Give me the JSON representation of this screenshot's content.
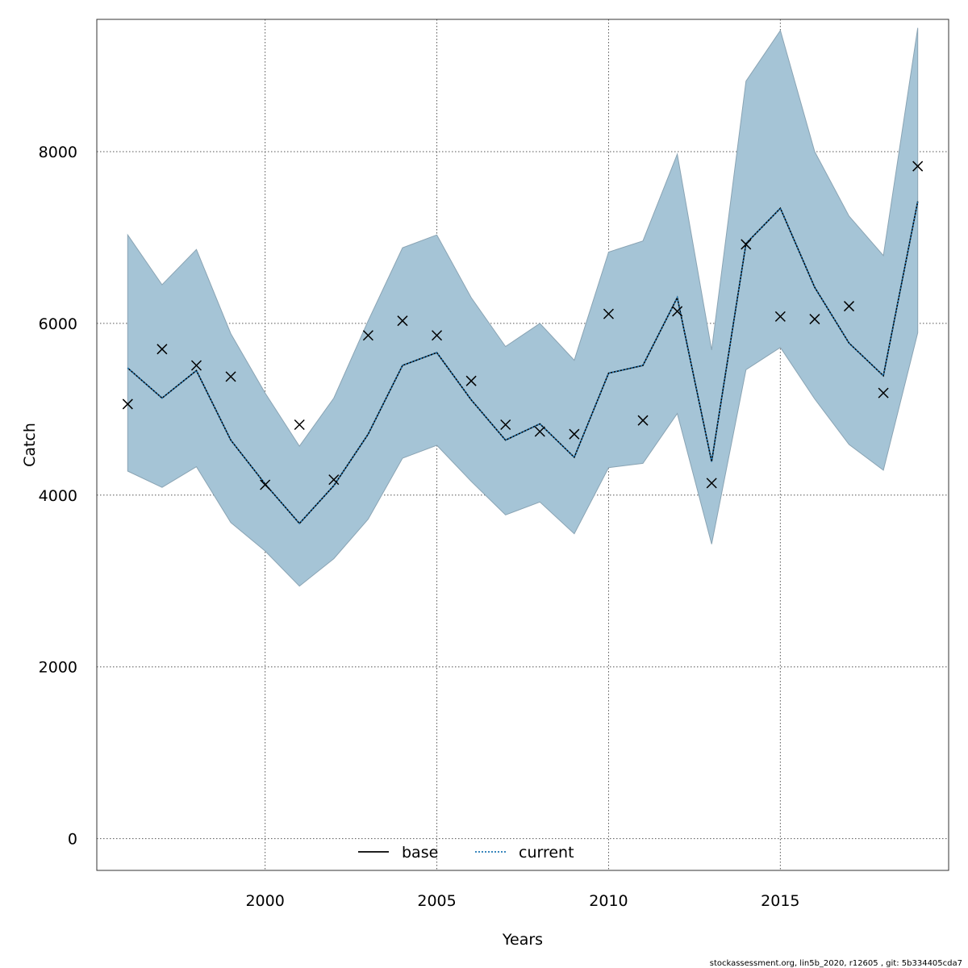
{
  "chart_data": {
    "type": "line",
    "xlabel": "Years",
    "ylabel": "Catch",
    "xlim": [
      1995.1,
      2019.9
    ],
    "ylim": [
      -370,
      9540
    ],
    "x_ticks": [
      2000,
      2005,
      2010,
      2015
    ],
    "y_ticks": [
      0,
      2000,
      4000,
      6000,
      8000
    ],
    "grid": true,
    "legend_position": "bottom-center",
    "x": [
      1996,
      1997,
      1998,
      1999,
      2000,
      2001,
      2002,
      2003,
      2004,
      2005,
      2006,
      2007,
      2008,
      2009,
      2010,
      2011,
      2012,
      2013,
      2014,
      2015,
      2016,
      2017,
      2018,
      2019
    ],
    "band": {
      "upper": [
        7030,
        6450,
        6860,
        5880,
        5190,
        4570,
        5130,
        6030,
        6880,
        7030,
        6300,
        5730,
        6000,
        5570,
        6830,
        6960,
        7970,
        5690,
        8820,
        9410,
        8000,
        7250,
        6790,
        9440
      ],
      "lower": [
        4280,
        4090,
        4330,
        3680,
        3350,
        2940,
        3260,
        3720,
        4430,
        4580,
        4160,
        3770,
        3920,
        3550,
        4320,
        4370,
        4950,
        3430,
        5460,
        5720,
        5120,
        4590,
        4290,
        5890
      ],
      "color": "#a5c4d6"
    },
    "observed": {
      "values": [
        5060,
        5700,
        5510,
        5380,
        4120,
        4820,
        4180,
        5860,
        6030,
        5860,
        5330,
        4820,
        4740,
        4710,
        6110,
        4870,
        6140,
        4140,
        6920,
        6080,
        6050,
        6200,
        5190,
        7830
      ],
      "marker": "x"
    },
    "series": [
      {
        "name": "base",
        "values": [
          5480,
          5130,
          5450,
          4640,
          4130,
          3670,
          4110,
          4710,
          5510,
          5660,
          5110,
          4640,
          4830,
          4440,
          5420,
          5510,
          6300,
          4390,
          6930,
          7340,
          6420,
          5770,
          5390,
          7420
        ],
        "color": "#000000",
        "style": "solid"
      },
      {
        "name": "current",
        "values": [
          5480,
          5130,
          5450,
          4640,
          4130,
          3670,
          4110,
          4710,
          5510,
          5660,
          5110,
          4640,
          4830,
          4440,
          5420,
          5510,
          6300,
          4390,
          6930,
          7340,
          6420,
          5770,
          5390,
          7420
        ],
        "color": "#1f77b4",
        "style": "dotted"
      }
    ]
  },
  "footer": "stockassessment.org, lin5b_2020, r12605 , git: 5b334405cda7"
}
